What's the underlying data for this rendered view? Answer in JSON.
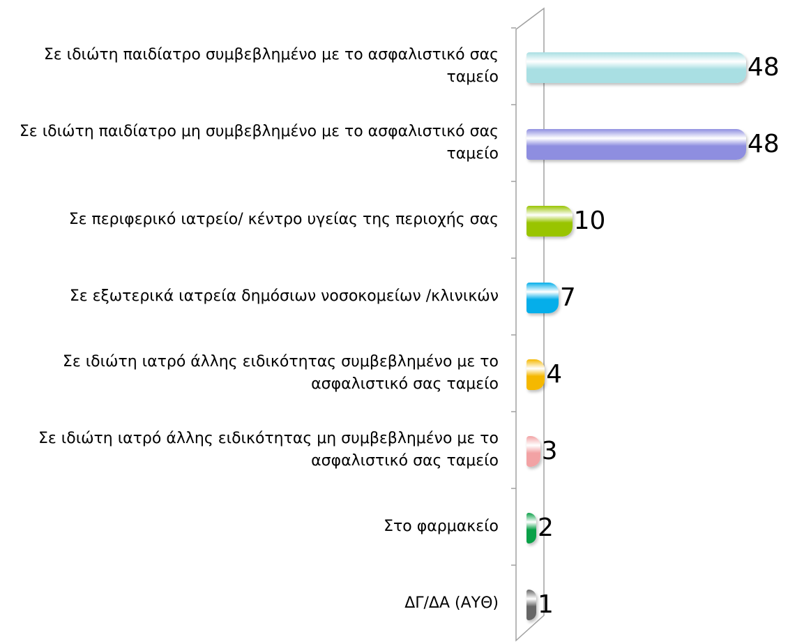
{
  "chart_data": {
    "type": "bar",
    "orientation": "horizontal",
    "categories": [
      "Σε ιδιώτη παιδίατρο συμβεβλημένο με το ασφαλιστικό σας ταμείο",
      "Σε ιδιώτη παιδίατρο μη συμβεβλημένο με το ασφαλιστικό σας ταμείο",
      "Σε περιφερικό ιατρείο/ κέντρο υγείας της περιοχής σας",
      "Σε εξωτερικά ιατρεία δημόσιων νοσοκομείων /κλινικών",
      "Σε ιδιώτη ιατρό άλλης ειδικότητας συμβεβλημένο με το ασφαλιστικό σας ταμείο",
      "Σε ιδιώτη ιατρό άλλης ειδικότητας μη συμβεβλημένο με το ασφαλιστικό σας ταμείο",
      "Στο φαρμακείο",
      "ΔΓ/ΔΑ (ΑΥΘ)"
    ],
    "values": [
      48,
      48,
      10,
      7,
      4,
      3,
      2,
      1
    ],
    "colors": [
      "#a9dfe3",
      "#8e8ee0",
      "#99c400",
      "#05aeea",
      "#f5b800",
      "#f2a2a4",
      "#0aa048",
      "#666666"
    ],
    "xlim": [
      0,
      50
    ]
  }
}
